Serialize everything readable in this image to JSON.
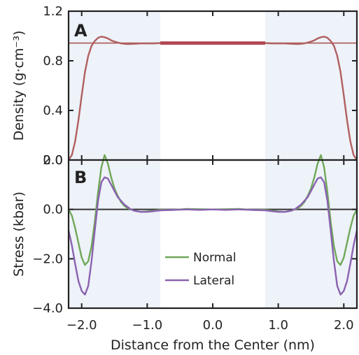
{
  "colors": {
    "density": "#b0605e",
    "density_center": "#a8243a",
    "normal": "#6fa858",
    "lateral": "#8a62b0",
    "reference": "#333333",
    "shade": "#eef2f9"
  },
  "shaded_regions": [
    [
      -2.2,
      -0.8
    ],
    [
      0.8,
      2.2
    ]
  ],
  "chart_data": [
    {
      "type": "line",
      "panel_label": "A",
      "title": "",
      "xlabel": "",
      "ylabel": "Density (g·cm⁻³)",
      "xlim": [
        -2.2,
        2.2
      ],
      "ylim": [
        0.0,
        1.2
      ],
      "xticks": [
        -2.0,
        -1.0,
        0.0,
        1.0,
        2.0
      ],
      "yticks": [
        {
          "value": 0.0,
          "label": "0.0"
        },
        {
          "value": 0.4,
          "label": "0.4"
        },
        {
          "value": 0.8,
          "label": "0.8"
        },
        {
          "value": 1.2,
          "label": "1.2"
        }
      ],
      "reference_y": 0.943,
      "series": [
        {
          "role": "density",
          "x": [
            -2.2,
            -2.15,
            -2.1,
            -2.05,
            -2.0,
            -1.95,
            -1.9,
            -1.85,
            -1.8,
            -1.75,
            -1.7,
            -1.65,
            -1.6,
            -1.55,
            -1.5,
            -1.4,
            -1.3,
            -1.2,
            -1.1,
            -1.0,
            -0.9,
            -0.8,
            -0.6,
            -0.4,
            -0.2,
            0.0,
            0.2,
            0.4,
            0.6,
            0.8,
            0.9,
            1.0,
            1.1,
            1.2,
            1.3,
            1.4,
            1.5,
            1.55,
            1.6,
            1.65,
            1.7,
            1.75,
            1.8,
            1.85,
            1.9,
            1.95,
            2.0,
            2.05,
            2.1,
            2.15,
            2.2
          ],
          "values": [
            0.0,
            0.04,
            0.15,
            0.32,
            0.52,
            0.71,
            0.84,
            0.92,
            0.96,
            0.985,
            0.995,
            0.99,
            0.98,
            0.965,
            0.955,
            0.94,
            0.935,
            0.937,
            0.94,
            0.94,
            0.94,
            0.943,
            0.943,
            0.943,
            0.943,
            0.943,
            0.943,
            0.943,
            0.943,
            0.943,
            0.94,
            0.94,
            0.94,
            0.937,
            0.935,
            0.94,
            0.955,
            0.965,
            0.98,
            0.99,
            0.995,
            0.985,
            0.96,
            0.92,
            0.84,
            0.71,
            0.52,
            0.32,
            0.15,
            0.04,
            0.0
          ]
        }
      ]
    },
    {
      "type": "line",
      "panel_label": "B",
      "title": "",
      "xlabel": "Distance from the Center (nm)",
      "ylabel": "Stress (kbar)",
      "xlim": [
        -2.2,
        2.2
      ],
      "ylim": [
        -4.0,
        2.0
      ],
      "xticks": [
        {
          "value": -2.0,
          "label": "−2.0"
        },
        {
          "value": -1.0,
          "label": "−1.0"
        },
        {
          "value": 0.0,
          "label": "0.0"
        },
        {
          "value": 1.0,
          "label": "1.0"
        },
        {
          "value": 2.0,
          "label": "2.0"
        }
      ],
      "yticks": [
        {
          "value": 2.0,
          "label": "2.0"
        },
        {
          "value": 0.0,
          "label": "0.0"
        },
        {
          "value": -2.0,
          "label": "−2.0"
        },
        {
          "value": -4.0,
          "label": "−4.0"
        }
      ],
      "reference_y": 0.0,
      "legend": "lower-center",
      "series": [
        {
          "name": "Normal",
          "role": "normal",
          "x": [
            -2.2,
            -2.15,
            -2.1,
            -2.05,
            -2.0,
            -1.95,
            -1.9,
            -1.85,
            -1.8,
            -1.75,
            -1.7,
            -1.65,
            -1.6,
            -1.55,
            -1.5,
            -1.45,
            -1.4,
            -1.35,
            -1.3,
            -1.25,
            -1.2,
            -1.1,
            -1.0,
            -0.9,
            -0.8,
            -0.6,
            -0.4,
            -0.2,
            0.0,
            0.2,
            0.4,
            0.6,
            0.8,
            0.9,
            1.0,
            1.1,
            1.2,
            1.25,
            1.3,
            1.35,
            1.4,
            1.45,
            1.5,
            1.55,
            1.6,
            1.65,
            1.7,
            1.75,
            1.8,
            1.85,
            1.9,
            1.95,
            2.0,
            2.05,
            2.1,
            2.15,
            2.2
          ],
          "values": [
            0.0,
            -0.25,
            -0.75,
            -1.35,
            -1.95,
            -2.25,
            -2.1,
            -1.5,
            -0.5,
            0.7,
            1.7,
            2.2,
            1.85,
            1.3,
            0.85,
            0.55,
            0.3,
            0.15,
            0.05,
            0.0,
            -0.05,
            -0.1,
            -0.08,
            -0.05,
            -0.02,
            -0.02,
            0.02,
            0.01,
            0.0,
            0.01,
            0.02,
            -0.02,
            -0.02,
            -0.05,
            -0.08,
            -0.1,
            -0.05,
            0.0,
            0.05,
            0.15,
            0.3,
            0.55,
            0.85,
            1.3,
            1.85,
            2.2,
            1.7,
            0.7,
            -0.5,
            -1.5,
            -2.1,
            -2.25,
            -1.95,
            -1.35,
            -0.75,
            -0.25,
            0.0
          ]
        },
        {
          "name": "Lateral",
          "role": "lateral",
          "x": [
            -2.2,
            -2.15,
            -2.1,
            -2.05,
            -2.0,
            -1.95,
            -1.9,
            -1.85,
            -1.8,
            -1.75,
            -1.7,
            -1.65,
            -1.6,
            -1.55,
            -1.5,
            -1.45,
            -1.4,
            -1.35,
            -1.3,
            -1.25,
            -1.2,
            -1.1,
            -1.0,
            -0.9,
            -0.8,
            -0.6,
            -0.4,
            -0.2,
            0.0,
            0.2,
            0.4,
            0.6,
            0.8,
            0.9,
            1.0,
            1.1,
            1.2,
            1.25,
            1.3,
            1.35,
            1.4,
            1.45,
            1.5,
            1.55,
            1.6,
            1.65,
            1.7,
            1.75,
            1.8,
            1.85,
            1.9,
            1.95,
            2.0,
            2.05,
            2.1,
            2.15,
            2.2
          ],
          "values": [
            -0.85,
            -1.45,
            -2.2,
            -2.9,
            -3.3,
            -3.45,
            -3.1,
            -2.1,
            -0.85,
            0.35,
            1.1,
            1.3,
            1.25,
            1.0,
            0.75,
            0.5,
            0.35,
            0.2,
            0.1,
            0.0,
            -0.05,
            -0.1,
            -0.1,
            -0.07,
            -0.04,
            -0.02,
            0.0,
            -0.02,
            0.0,
            -0.02,
            0.0,
            -0.02,
            -0.04,
            -0.07,
            -0.1,
            -0.1,
            -0.05,
            0.0,
            0.1,
            0.2,
            0.35,
            0.5,
            0.75,
            1.0,
            1.25,
            1.3,
            1.1,
            0.35,
            -0.85,
            -2.1,
            -3.1,
            -3.45,
            -3.3,
            -2.9,
            -2.2,
            -1.45,
            -0.85
          ]
        }
      ]
    }
  ]
}
